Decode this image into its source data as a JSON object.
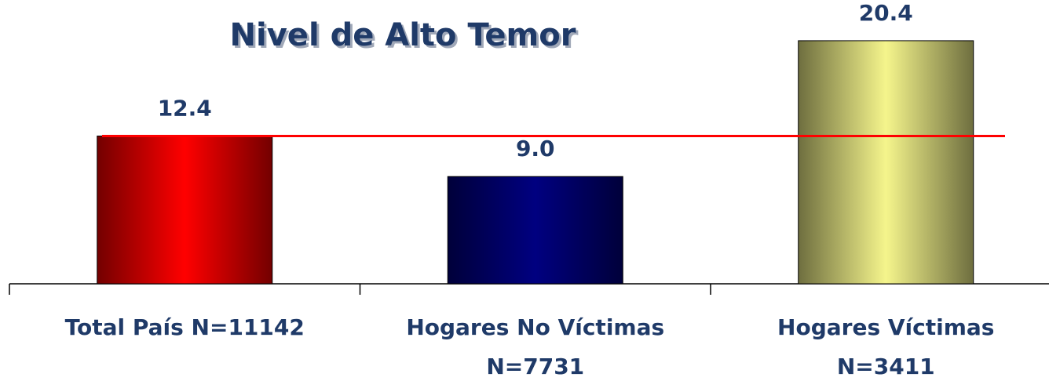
{
  "chart_data": {
    "type": "bar",
    "title": "Nivel de Alto Temor",
    "categories": [
      [
        "Total País N=11142"
      ],
      [
        "Hogares No Víctimas",
        "N=7731"
      ],
      [
        "Hogares Víctimas",
        "N=3411"
      ]
    ],
    "values": [
      12.4,
      9.0,
      20.4
    ],
    "value_labels": [
      "12.4",
      "9.0",
      "20.4"
    ],
    "colors": [
      "#ff0000",
      "#000080",
      "#f5f58c"
    ],
    "reference_line": {
      "value": 12.4,
      "color": "#ff0000"
    },
    "ylim": [
      0,
      24
    ]
  }
}
